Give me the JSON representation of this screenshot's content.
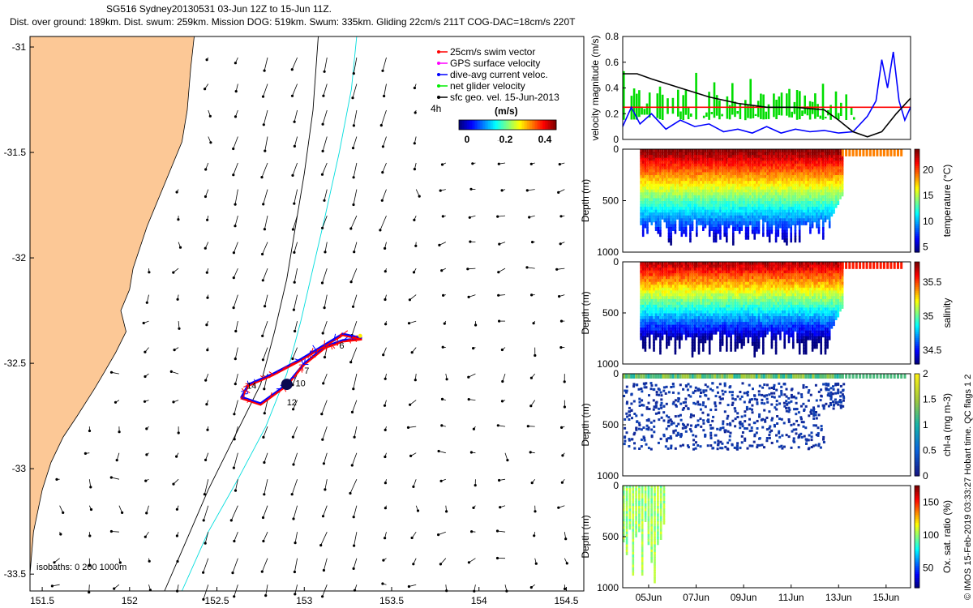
{
  "header": {
    "title_line1": "SG516 Sydney20130531 03-Jun 12Z to 15-Jun 11Z.",
    "title_line2": "Dist. over ground: 189km. Dist. swum: 259km. Mission DOG: 519km. Swum: 335km. Gliding 22cm/s 211T COG-DAC=18cm/s 220T"
  },
  "map": {
    "x_ticks": [
      "151.5",
      "152",
      "152.5",
      "153",
      "153.5",
      "154",
      "154.5"
    ],
    "y_ticks": [
      "-31",
      "-31.5",
      "-32",
      "-32.5",
      "-33",
      "-33.5"
    ],
    "isobaths_label": "isobaths: 0   200   1000m",
    "legend": [
      {
        "label": "25cm/s swim vector",
        "color": "#ff0000"
      },
      {
        "label": "GPS surface velocity",
        "color": "#ff00ff"
      },
      {
        "label": "dive-avg current veloc.",
        "color": "#0000ff"
      },
      {
        "label": "net glider velocity",
        "color": "#00ee00"
      },
      {
        "label": "sfc geo. vel. 15-Jun-2013",
        "color": "#000000"
      }
    ],
    "legend_hours": "4h",
    "colorbar_label": "(m/s)",
    "colorbar_ticks": [
      "0",
      "0.2",
      "0.4"
    ],
    "track_labels": [
      "6",
      "7",
      "10",
      "12",
      "14"
    ],
    "colors": {
      "land": "#fcc896",
      "coast_line": "#000000",
      "isobath_200": "#00dddd",
      "isobath_1000": "#000000"
    }
  },
  "chart_data": [
    {
      "type": "line",
      "ylabel": "velocity magnitude (m/s)",
      "ylim": [
        0,
        0.8
      ],
      "y_ticks": [
        "0",
        "0.2",
        "0.4",
        "0.6",
        "0.8"
      ],
      "series": [
        {
          "name": "25cm/s swim vector",
          "color": "#ff0000",
          "x": [
            0,
            1
          ],
          "y": [
            0.25,
            0.25
          ]
        },
        {
          "name": "dive-avg current veloc.",
          "color": "#0000ff",
          "x": [
            0,
            0.03,
            0.06,
            0.1,
            0.15,
            0.2,
            0.25,
            0.3,
            0.35,
            0.4,
            0.45,
            0.5,
            0.55,
            0.6,
            0.65,
            0.7,
            0.75,
            0.8,
            0.85,
            0.88,
            0.9,
            0.92,
            0.94,
            0.96,
            0.98,
            1
          ],
          "y": [
            0.1,
            0.25,
            0.12,
            0.2,
            0.08,
            0.15,
            0.1,
            0.12,
            0.06,
            0.08,
            0.05,
            0.1,
            0.05,
            0.08,
            0.06,
            0.07,
            0.05,
            0.06,
            0.18,
            0.3,
            0.62,
            0.4,
            0.68,
            0.3,
            0.15,
            0.25
          ]
        },
        {
          "name": "sfc geo. vel.",
          "color": "#000000",
          "x": [
            0,
            0.05,
            0.1,
            0.2,
            0.3,
            0.4,
            0.5,
            0.6,
            0.7,
            0.75,
            0.8,
            0.85,
            0.9,
            0.95,
            1
          ],
          "y": [
            0.51,
            0.51,
            0.47,
            0.4,
            0.33,
            0.28,
            0.25,
            0.25,
            0.23,
            0.15,
            0.06,
            0.02,
            0.06,
            0.2,
            0.32
          ]
        },
        {
          "name": "net glider velocity",
          "color": "#00dd00",
          "x": [
            0,
            0.05,
            0.1,
            0.15,
            0.2,
            0.25,
            0.3,
            0.35,
            0.4,
            0.45,
            0.5,
            0.55,
            0.6,
            0.65,
            0.7,
            0.75,
            0.8
          ],
          "y": [
            0.2,
            0.3,
            0.1,
            0.38,
            0.25,
            0.35,
            0.2,
            0.3,
            0.15,
            0.4,
            0.2,
            0.35,
            0.28,
            0.3,
            0.22,
            0.25,
            0.3
          ]
        }
      ]
    },
    {
      "type": "heatmap",
      "variable": "temperature",
      "ylabel": "Depth (m)",
      "y_ticks": [
        "0",
        "500",
        "1000"
      ],
      "colorbar_label": "temperature (°C)",
      "colorbar_ticks": [
        "5",
        "10",
        "15",
        "20"
      ],
      "colorbar_range": [
        4,
        24
      ]
    },
    {
      "type": "heatmap",
      "variable": "salinity",
      "ylabel": "Depth (m)",
      "y_ticks": [
        "0",
        "500",
        "1000"
      ],
      "colorbar_label": "salinity",
      "colorbar_ticks": [
        "34.5",
        "35",
        "35.5"
      ],
      "colorbar_range": [
        34.3,
        35.8
      ]
    },
    {
      "type": "heatmap",
      "variable": "chl-a",
      "ylabel": "Depth (m)",
      "y_ticks": [
        "0",
        "500",
        "1000"
      ],
      "colorbar_label": "chl-a (mg m-3)",
      "colorbar_ticks": [
        "0",
        "0.5",
        "1",
        "1.5",
        "2"
      ],
      "colorbar_range": [
        0,
        2
      ]
    },
    {
      "type": "heatmap",
      "variable": "Ox. sat. ratio",
      "ylabel": "Depth (m)",
      "y_ticks": [
        "0",
        "500",
        "1000"
      ],
      "colorbar_label": "Ox. sat. ratio (%)",
      "colorbar_ticks": [
        "50",
        "100",
        "150"
      ],
      "colorbar_range": [
        20,
        175
      ],
      "x_ticks": [
        "05Jun",
        "07Jun",
        "09Jun",
        "11Jun",
        "13Jun",
        "15Jun"
      ]
    }
  ],
  "footer": {
    "watermark": "© IMOS 15-Feb-2019 03:33:27 Hobart time. QC flags 1  2"
  }
}
